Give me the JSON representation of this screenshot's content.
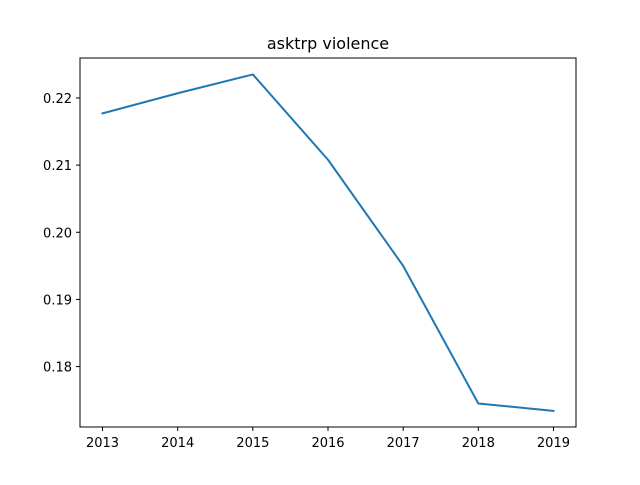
{
  "chart_data": {
    "type": "line",
    "title": "asktrp violence",
    "xlabel": "",
    "ylabel": "",
    "x": [
      2013,
      2014,
      2015,
      2016,
      2017,
      2018,
      2019
    ],
    "series": [
      {
        "values": [
          0.2177,
          0.2207,
          0.2235,
          0.2108,
          0.195,
          0.1745,
          0.1734
        ],
        "color": "#1f77b4"
      }
    ],
    "xticks": [
      "2013",
      "2014",
      "2015",
      "2016",
      "2017",
      "2018",
      "2019"
    ],
    "yticks": [
      "0.18",
      "0.19",
      "0.20",
      "0.21",
      "0.22"
    ],
    "xlim": [
      2012.7,
      2019.3
    ],
    "ylim": [
      0.171,
      0.22595
    ],
    "grid": false,
    "legend": "none"
  }
}
